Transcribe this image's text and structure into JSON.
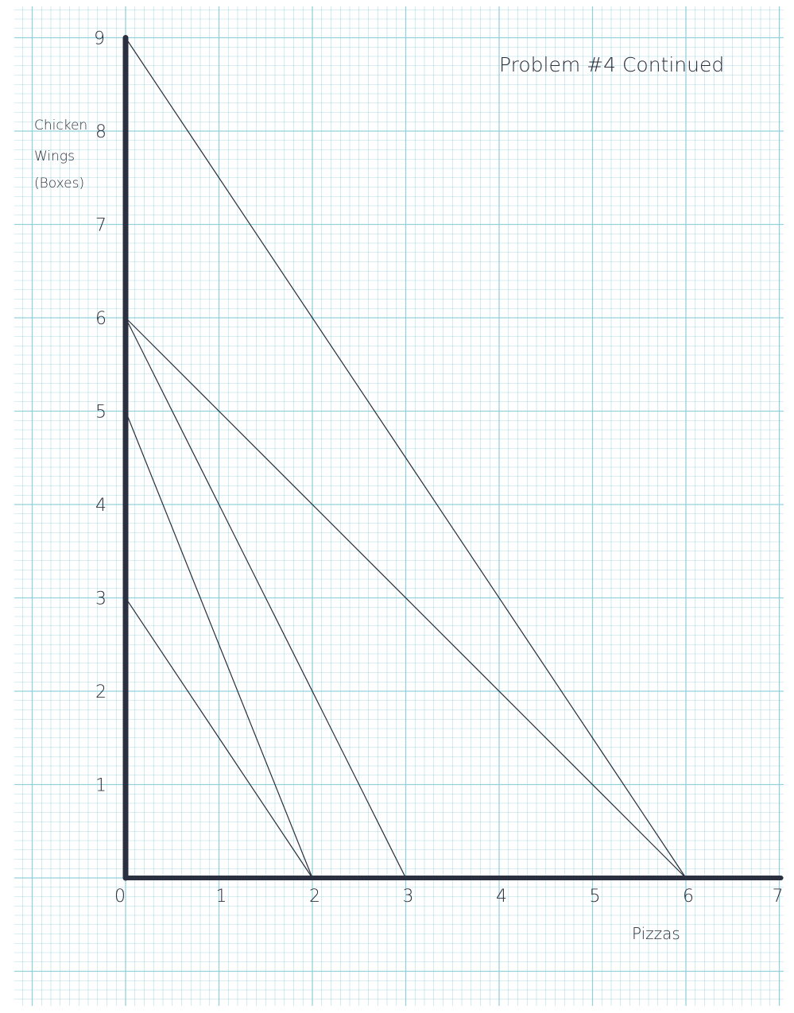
{
  "chart_data": {
    "type": "line",
    "title": "Problem #4 Continued",
    "xlabel": "Pizzas",
    "ylabel": [
      "Chicken",
      "Wings",
      "(Boxes)"
    ],
    "xlim": [
      0,
      7
    ],
    "ylim": [
      0,
      9
    ],
    "xticks": [
      "0",
      "1",
      "2",
      "3",
      "4",
      "5",
      "6",
      "7"
    ],
    "yticks": [
      "1",
      "2",
      "3",
      "4",
      "5",
      "6",
      "7",
      "8",
      "9"
    ],
    "grid": true,
    "series": [
      {
        "x": [
          0,
          6
        ],
        "y": [
          9,
          0
        ]
      },
      {
        "x": [
          0,
          6
        ],
        "y": [
          6,
          0
        ]
      },
      {
        "x": [
          0,
          3
        ],
        "y": [
          6,
          0
        ]
      },
      {
        "x": [
          0,
          2
        ],
        "y": [
          5,
          0
        ]
      },
      {
        "x": [
          0,
          2
        ],
        "y": [
          3,
          0
        ]
      }
    ],
    "colors": {
      "grid": "#8fcfdb",
      "ink": "#2a2e3a",
      "axis": "#2b3040"
    }
  }
}
